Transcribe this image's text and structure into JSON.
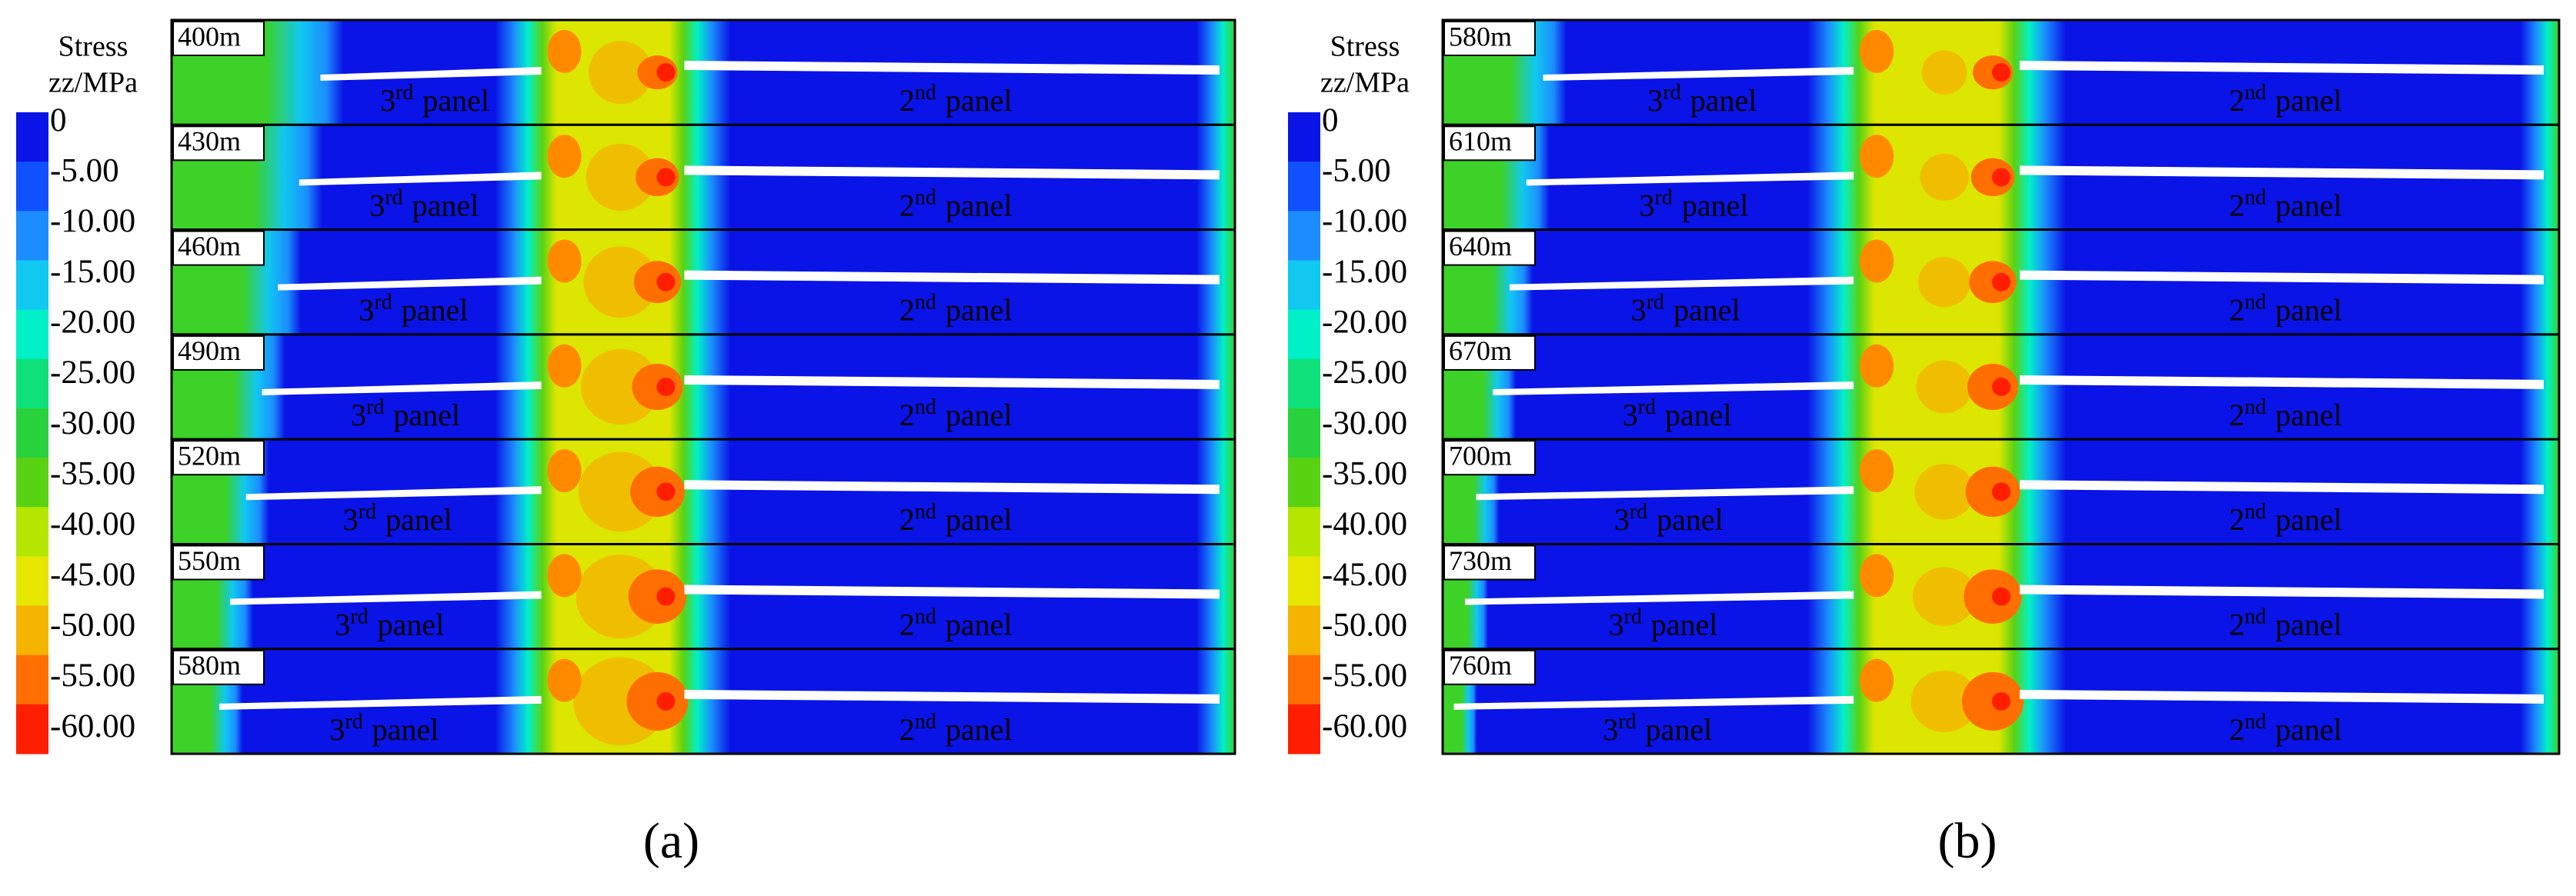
{
  "legend": {
    "title": [
      "Stress",
      "zz/MPa"
    ],
    "labels": [
      "0",
      "-5.00",
      "-10.00",
      "-15.00",
      "-20.00",
      "-25.00",
      "-30.00",
      "-35.00",
      "-40.00",
      "-45.00",
      "-50.00",
      "-55.00",
      "-60.00"
    ],
    "colors": [
      "#0a14e6",
      "#1050ff",
      "#1c8cff",
      "#10c8f0",
      "#00f0c8",
      "#10e07a",
      "#28d23c",
      "#5ad214",
      "#b4e600",
      "#e6e600",
      "#f5b400",
      "#ff6e00",
      "#ff1e00"
    ]
  },
  "panels": [
    {
      "caption": "(a)",
      "rows": [
        {
          "label": "400m",
          "left": {
            "num": "3",
            "sup": "rd",
            "word": "panel"
          },
          "right": {
            "num": "2",
            "sup": "nd",
            "word": "panel"
          }
        },
        {
          "label": "430m",
          "left": {
            "num": "3",
            "sup": "rd",
            "word": "panel"
          },
          "right": {
            "num": "2",
            "sup": "nd",
            "word": "panel"
          }
        },
        {
          "label": "460m",
          "left": {
            "num": "3",
            "sup": "rd",
            "word": "panel"
          },
          "right": {
            "num": "2",
            "sup": "nd",
            "word": "panel"
          }
        },
        {
          "label": "490m",
          "left": {
            "num": "3",
            "sup": "rd",
            "word": "panel"
          },
          "right": {
            "num": "2",
            "sup": "nd",
            "word": "panel"
          }
        },
        {
          "label": "520m",
          "left": {
            "num": "3",
            "sup": "rd",
            "word": "panel"
          },
          "right": {
            "num": "2",
            "sup": "nd",
            "word": "panel"
          }
        },
        {
          "label": "550m",
          "left": {
            "num": "3",
            "sup": "rd",
            "word": "panel"
          },
          "right": {
            "num": "2",
            "sup": "nd",
            "word": "panel"
          }
        },
        {
          "label": "580m",
          "left": {
            "num": "3",
            "sup": "rd",
            "word": "panel"
          },
          "right": {
            "num": "2",
            "sup": "nd",
            "word": "panel"
          }
        }
      ]
    },
    {
      "caption": "(b)",
      "rows": [
        {
          "label": "580m",
          "left": {
            "num": "3",
            "sup": "rd",
            "word": "panel"
          },
          "right": {
            "num": "2",
            "sup": "nd",
            "word": "panel"
          }
        },
        {
          "label": "610m",
          "left": {
            "num": "3",
            "sup": "rd",
            "word": "panel"
          },
          "right": {
            "num": "2",
            "sup": "nd",
            "word": "panel"
          }
        },
        {
          "label": "640m",
          "left": {
            "num": "3",
            "sup": "rd",
            "word": "panel"
          },
          "right": {
            "num": "2",
            "sup": "nd",
            "word": "panel"
          }
        },
        {
          "label": "670m",
          "left": {
            "num": "3",
            "sup": "rd",
            "word": "panel"
          },
          "right": {
            "num": "2",
            "sup": "nd",
            "word": "panel"
          }
        },
        {
          "label": "700m",
          "left": {
            "num": "3",
            "sup": "rd",
            "word": "panel"
          },
          "right": {
            "num": "2",
            "sup": "nd",
            "word": "panel"
          }
        },
        {
          "label": "730m",
          "left": {
            "num": "3",
            "sup": "rd",
            "word": "panel"
          },
          "right": {
            "num": "2",
            "sup": "nd",
            "word": "panel"
          }
        },
        {
          "label": "760m",
          "left": {
            "num": "3",
            "sup": "rd",
            "word": "panel"
          },
          "right": {
            "num": "2",
            "sup": "nd",
            "word": "panel"
          }
        }
      ]
    }
  ]
}
